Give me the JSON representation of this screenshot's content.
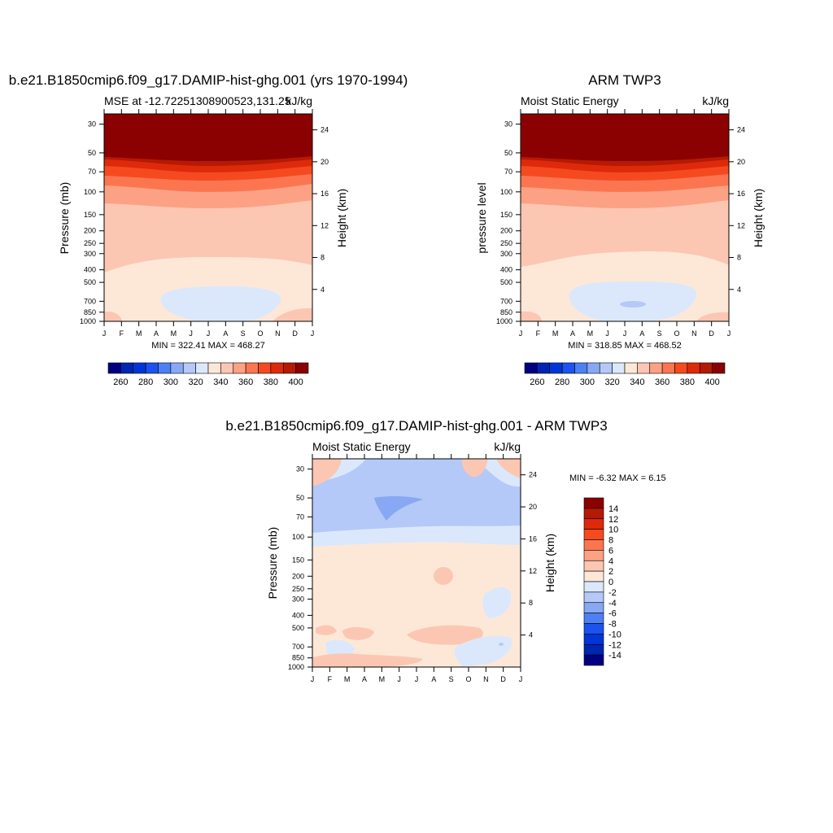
{
  "months": [
    "J",
    "F",
    "M",
    "A",
    "M",
    "J",
    "J",
    "A",
    "S",
    "O",
    "N",
    "D",
    "J"
  ],
  "pressure_ticks": [
    30,
    50,
    70,
    100,
    150,
    200,
    250,
    300,
    400,
    500,
    700,
    850,
    1000
  ],
  "height_ticks": [
    4,
    8,
    12,
    16,
    20,
    24
  ],
  "labels": {
    "pressure_mb": "Pressure (mb)",
    "pressure_level": "pressure level",
    "height_km": "Height (km)",
    "units": "kJ/kg"
  },
  "panel1": {
    "title": "b.e21.B1850cmip6.f09_g17.DAMIP-hist-ghg.001 (yrs 1970-1994)",
    "subtitle_left": "MSE at -12.72251308900523,131.25",
    "subtitle_right": "kJ/kg",
    "stats": "MIN = 322.41 MAX = 468.27"
  },
  "panel2": {
    "title": "ARM TWP3",
    "subtitle_left": "Moist Static Energy",
    "subtitle_right": "kJ/kg",
    "stats": "MIN = 318.85 MAX = 468.52"
  },
  "panel3": {
    "title": "b.e21.B1850cmip6.f09_g17.DAMIP-hist-ghg.001 - ARM TWP3",
    "subtitle_left": "Moist Static Energy",
    "subtitle_right": "kJ/kg",
    "stats": "MIN =  -6.32 MAX =   6.15"
  },
  "colors": {
    "mse": [
      "#000080",
      "#0025b2",
      "#0036d8",
      "#1a53f0",
      "#4f7ff4",
      "#88a8f4",
      "#b4c9f8",
      "#dbe8fc",
      "#fde8d8",
      "#fcc7b2",
      "#fca184",
      "#fb7650",
      "#f54a20",
      "#de2a0a",
      "#b41a04",
      "#8b0000"
    ],
    "diff": [
      "#000080",
      "#0025b2",
      "#0036d8",
      "#1a53f0",
      "#4f7ff4",
      "#88a8f4",
      "#b4c9f8",
      "#dbe8fc",
      "#fde8d8",
      "#fcc7b2",
      "#fca184",
      "#fb7650",
      "#f54a20",
      "#de2a0a",
      "#b41a04",
      "#8b0000"
    ]
  },
  "chart_data": [
    {
      "type": "heatmap",
      "title": "b.e21.B1850cmip6.f09_g17.DAMIP-hist-ghg.001 (yrs 1970-1994)",
      "subtitle": "MSE at -12.72251308900523,131.25",
      "units": "kJ/kg",
      "xlabel": "",
      "ylabel": "Pressure (mb)",
      "y2label": "Height (km)",
      "x": [
        "J",
        "F",
        "M",
        "A",
        "M",
        "J",
        "J",
        "A",
        "S",
        "O",
        "N",
        "D",
        "J"
      ],
      "y_pressure_mb": [
        1000,
        850,
        700,
        500,
        400,
        300,
        200,
        150,
        100,
        70,
        50,
        30
      ],
      "ylim": [
        1000,
        25
      ],
      "colorbar_levels": [
        250,
        260,
        270,
        280,
        290,
        300,
        310,
        320,
        330,
        340,
        350,
        360,
        370,
        380,
        390,
        400
      ],
      "colorbar_tick_labels": [
        260,
        280,
        300,
        320,
        340,
        360,
        380,
        400
      ],
      "min": 322.41,
      "max": 468.27
    },
    {
      "type": "heatmap",
      "title": "ARM TWP3",
      "subtitle": "Moist Static Energy",
      "units": "kJ/kg",
      "xlabel": "",
      "ylabel": "pressure level",
      "y2label": "Height (km)",
      "x": [
        "J",
        "F",
        "M",
        "A",
        "M",
        "J",
        "J",
        "A",
        "S",
        "O",
        "N",
        "D",
        "J"
      ],
      "y_pressure_mb": [
        1000,
        850,
        700,
        500,
        400,
        300,
        200,
        150,
        100,
        70,
        50,
        30
      ],
      "ylim": [
        1000,
        25
      ],
      "colorbar_levels": [
        250,
        260,
        270,
        280,
        290,
        300,
        310,
        320,
        330,
        340,
        350,
        360,
        370,
        380,
        390,
        400
      ],
      "colorbar_tick_labels": [
        260,
        280,
        300,
        320,
        340,
        360,
        380,
        400
      ],
      "min": 318.85,
      "max": 468.52
    },
    {
      "type": "heatmap",
      "title": "b.e21.B1850cmip6.f09_g17.DAMIP-hist-ghg.001 - ARM TWP3",
      "subtitle": "Moist Static Energy",
      "units": "kJ/kg",
      "xlabel": "",
      "ylabel": "Pressure (mb)",
      "y2label": "Height (km)",
      "x": [
        "J",
        "F",
        "M",
        "A",
        "M",
        "J",
        "J",
        "A",
        "S",
        "O",
        "N",
        "D",
        "J"
      ],
      "y_pressure_mb": [
        1000,
        850,
        700,
        500,
        400,
        300,
        200,
        150,
        100,
        70,
        50,
        30
      ],
      "ylim": [
        1000,
        25
      ],
      "colorbar_tick_labels": [
        14,
        12,
        10,
        8,
        6,
        4,
        2,
        0,
        -2,
        -4,
        -6,
        -8,
        -10,
        -12,
        -14
      ],
      "min": -6.32,
      "max": 6.15
    }
  ]
}
